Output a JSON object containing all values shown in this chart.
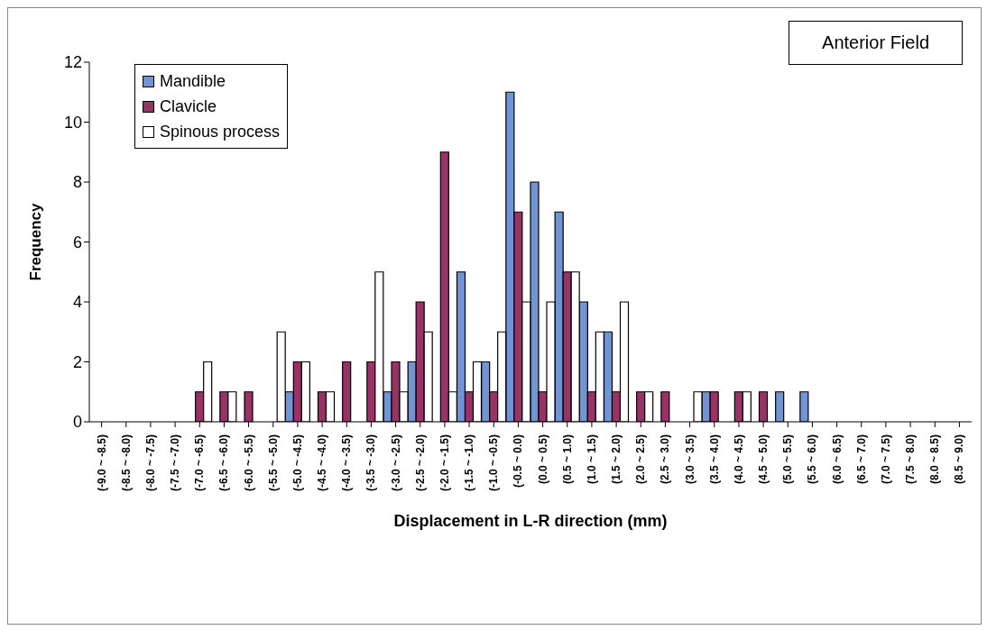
{
  "chart_data": {
    "type": "bar",
    "xlabel": "Displacement in L-R direction (mm)",
    "ylabel": "Frequency",
    "annotations": [
      "Anterior Field"
    ],
    "categories": [
      "(-9.0 ~ -8.5)",
      "(-8.5 ~ -8.0)",
      "(-8.0 ~ -7.5)",
      "(-7.5 ~ -7.0)",
      "(-7.0 ~ -6.5)",
      "(-6.5 ~ -6.0)",
      "(-6.0 ~ -5.5)",
      "(-5.5 ~ -5.0)",
      "(-5.0 ~ -4.5)",
      "(-4.5 ~ -4.0)",
      "(-4.0 ~ -3.5)",
      "(-3.5 ~ -3.0)",
      "(-3.0 ~ -2.5)",
      "(-2.5 ~ -2.0)",
      "(-2.0 ~ -1.5)",
      "(-1.5 ~ -1.0)",
      "(-1.0 ~ -0.5)",
      "(-0.5 ~ 0.0)",
      "(0.0 ~ 0.5)",
      "(0.5 ~ 1.0)",
      "(1.0 ~ 1.5)",
      "(1.5 ~ 2.0)",
      "(2.0 ~ 2.5)",
      "(2.5 ~ 3.0)",
      "(3.0 ~ 3.5)",
      "(3.5 ~ 4.0)",
      "(4.0 ~ 4.5)",
      "(4.5 ~ 5.0)",
      "(5.0 ~ 5.5)",
      "(5.5 ~ 6.0)",
      "(6.0 ~ 6.5)",
      "(6.5 ~ 7.0)",
      "(7.0 ~ 7.5)",
      "(7.5 ~ 8.0)",
      "(8.0 ~ 8.5)",
      "(8.5 ~ 9.0)"
    ],
    "series": [
      {
        "name": "Mandible",
        "color": "#7094d4",
        "values": [
          0,
          0,
          0,
          0,
          0,
          0,
          0,
          0,
          1,
          0,
          0,
          0,
          1,
          2,
          0,
          5,
          2,
          11,
          8,
          7,
          4,
          3,
          0,
          0,
          0,
          1,
          0,
          0,
          1,
          1,
          0,
          0,
          0,
          0,
          0,
          0
        ]
      },
      {
        "name": "Clavicle",
        "color": "#993366",
        "values": [
          0,
          0,
          0,
          0,
          1,
          1,
          1,
          0,
          2,
          1,
          2,
          2,
          2,
          4,
          9,
          1,
          1,
          7,
          1,
          5,
          1,
          1,
          1,
          1,
          0,
          1,
          1,
          1,
          0,
          0,
          0,
          0,
          0,
          0,
          0,
          0
        ]
      },
      {
        "name": "Spinous process",
        "color": "#ffffff",
        "values": [
          0,
          0,
          0,
          0,
          2,
          1,
          0,
          3,
          2,
          1,
          0,
          5,
          1,
          3,
          1,
          2,
          3,
          4,
          4,
          5,
          3,
          4,
          1,
          0,
          1,
          0,
          1,
          0,
          0,
          0,
          0,
          0,
          0,
          0,
          0,
          0
        ]
      }
    ],
    "ylim": [
      0,
      12
    ],
    "yticks": [
      0,
      2,
      4,
      6,
      8,
      10,
      12
    ],
    "legend": "top left"
  }
}
